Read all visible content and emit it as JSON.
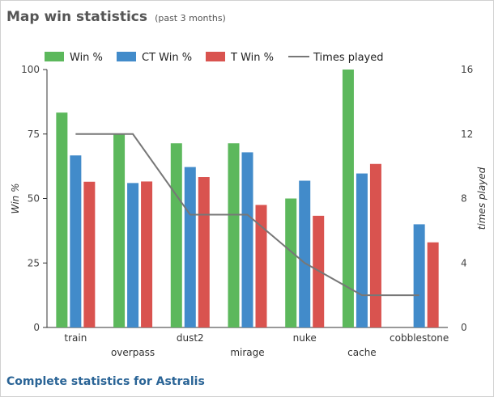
{
  "header": {
    "title": "Map win statistics",
    "subtitle": "(past 3 months)"
  },
  "footer": {
    "link_label": "Complete statistics for Astralis"
  },
  "colors": {
    "win": "#5cb85c",
    "ct": "#428bca",
    "t": "#d9534f",
    "times": "#777777",
    "link": "#2a6496"
  },
  "chart_data": {
    "type": "bar",
    "categories": [
      "train",
      "overpass",
      "dust2",
      "mirage",
      "nuke",
      "cache",
      "cobblestone"
    ],
    "series": [
      {
        "name": "Win %",
        "kind": "bar",
        "axis": "left",
        "color": "#5cb85c",
        "values": [
          83.3,
          75,
          71.4,
          71.4,
          50,
          100,
          0
        ]
      },
      {
        "name": "CT Win %",
        "kind": "bar",
        "axis": "left",
        "color": "#428bca",
        "values": [
          66.7,
          56,
          62.2,
          67.9,
          56.9,
          59.7,
          40
        ]
      },
      {
        "name": "T Win %",
        "kind": "bar",
        "axis": "left",
        "color": "#d9534f",
        "values": [
          56.5,
          56.6,
          58.3,
          47.5,
          43.3,
          63.4,
          33
        ]
      },
      {
        "name": "Times played",
        "kind": "line",
        "axis": "right",
        "color": "#777777",
        "values": [
          12,
          12,
          7,
          7,
          4,
          2,
          2
        ]
      }
    ],
    "ylabel": "Win %",
    "y2label": "times played",
    "ylim": [
      0,
      100
    ],
    "y2lim": [
      0,
      16
    ],
    "yticks": [
      0,
      25,
      50,
      75,
      100
    ],
    "y2ticks": [
      0,
      4,
      8,
      12,
      16
    ],
    "legend": "top-left",
    "grid": false
  }
}
